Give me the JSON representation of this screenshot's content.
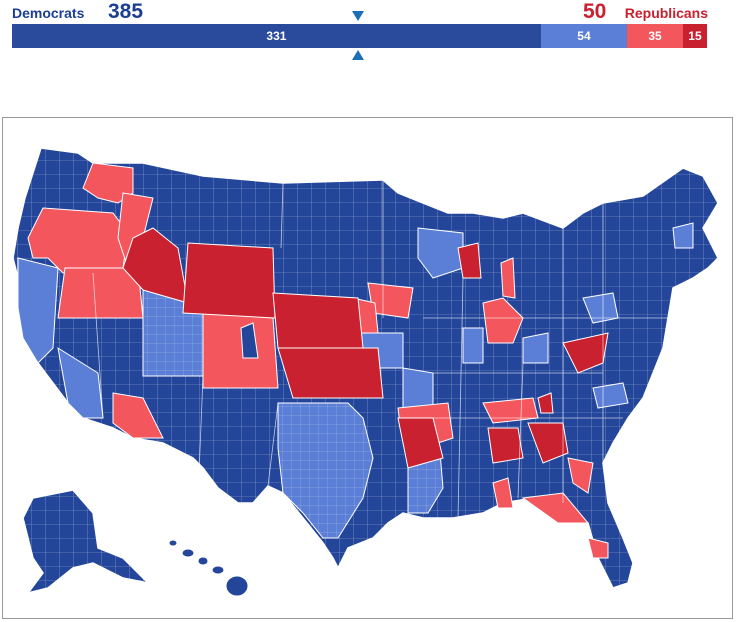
{
  "summary": {
    "dem_label": "Democrats",
    "dem_total": "385",
    "rep_total": "50",
    "rep_label": "Republicans"
  },
  "bar_segments": [
    {
      "label": "331",
      "value": 331,
      "color": "#2a4a9c"
    },
    {
      "label": "54",
      "value": 54,
      "color": "#5b7fd6"
    },
    {
      "label": "35",
      "value": 35,
      "color": "#f4565e"
    },
    {
      "label": "15",
      "value": 15,
      "color": "#c8202f"
    }
  ],
  "legend_colors": {
    "safe_dem": "#24469a",
    "lean_dem": "#5b7fd6",
    "lean_rep": "#f4565e",
    "safe_rep": "#c9212f"
  }
}
